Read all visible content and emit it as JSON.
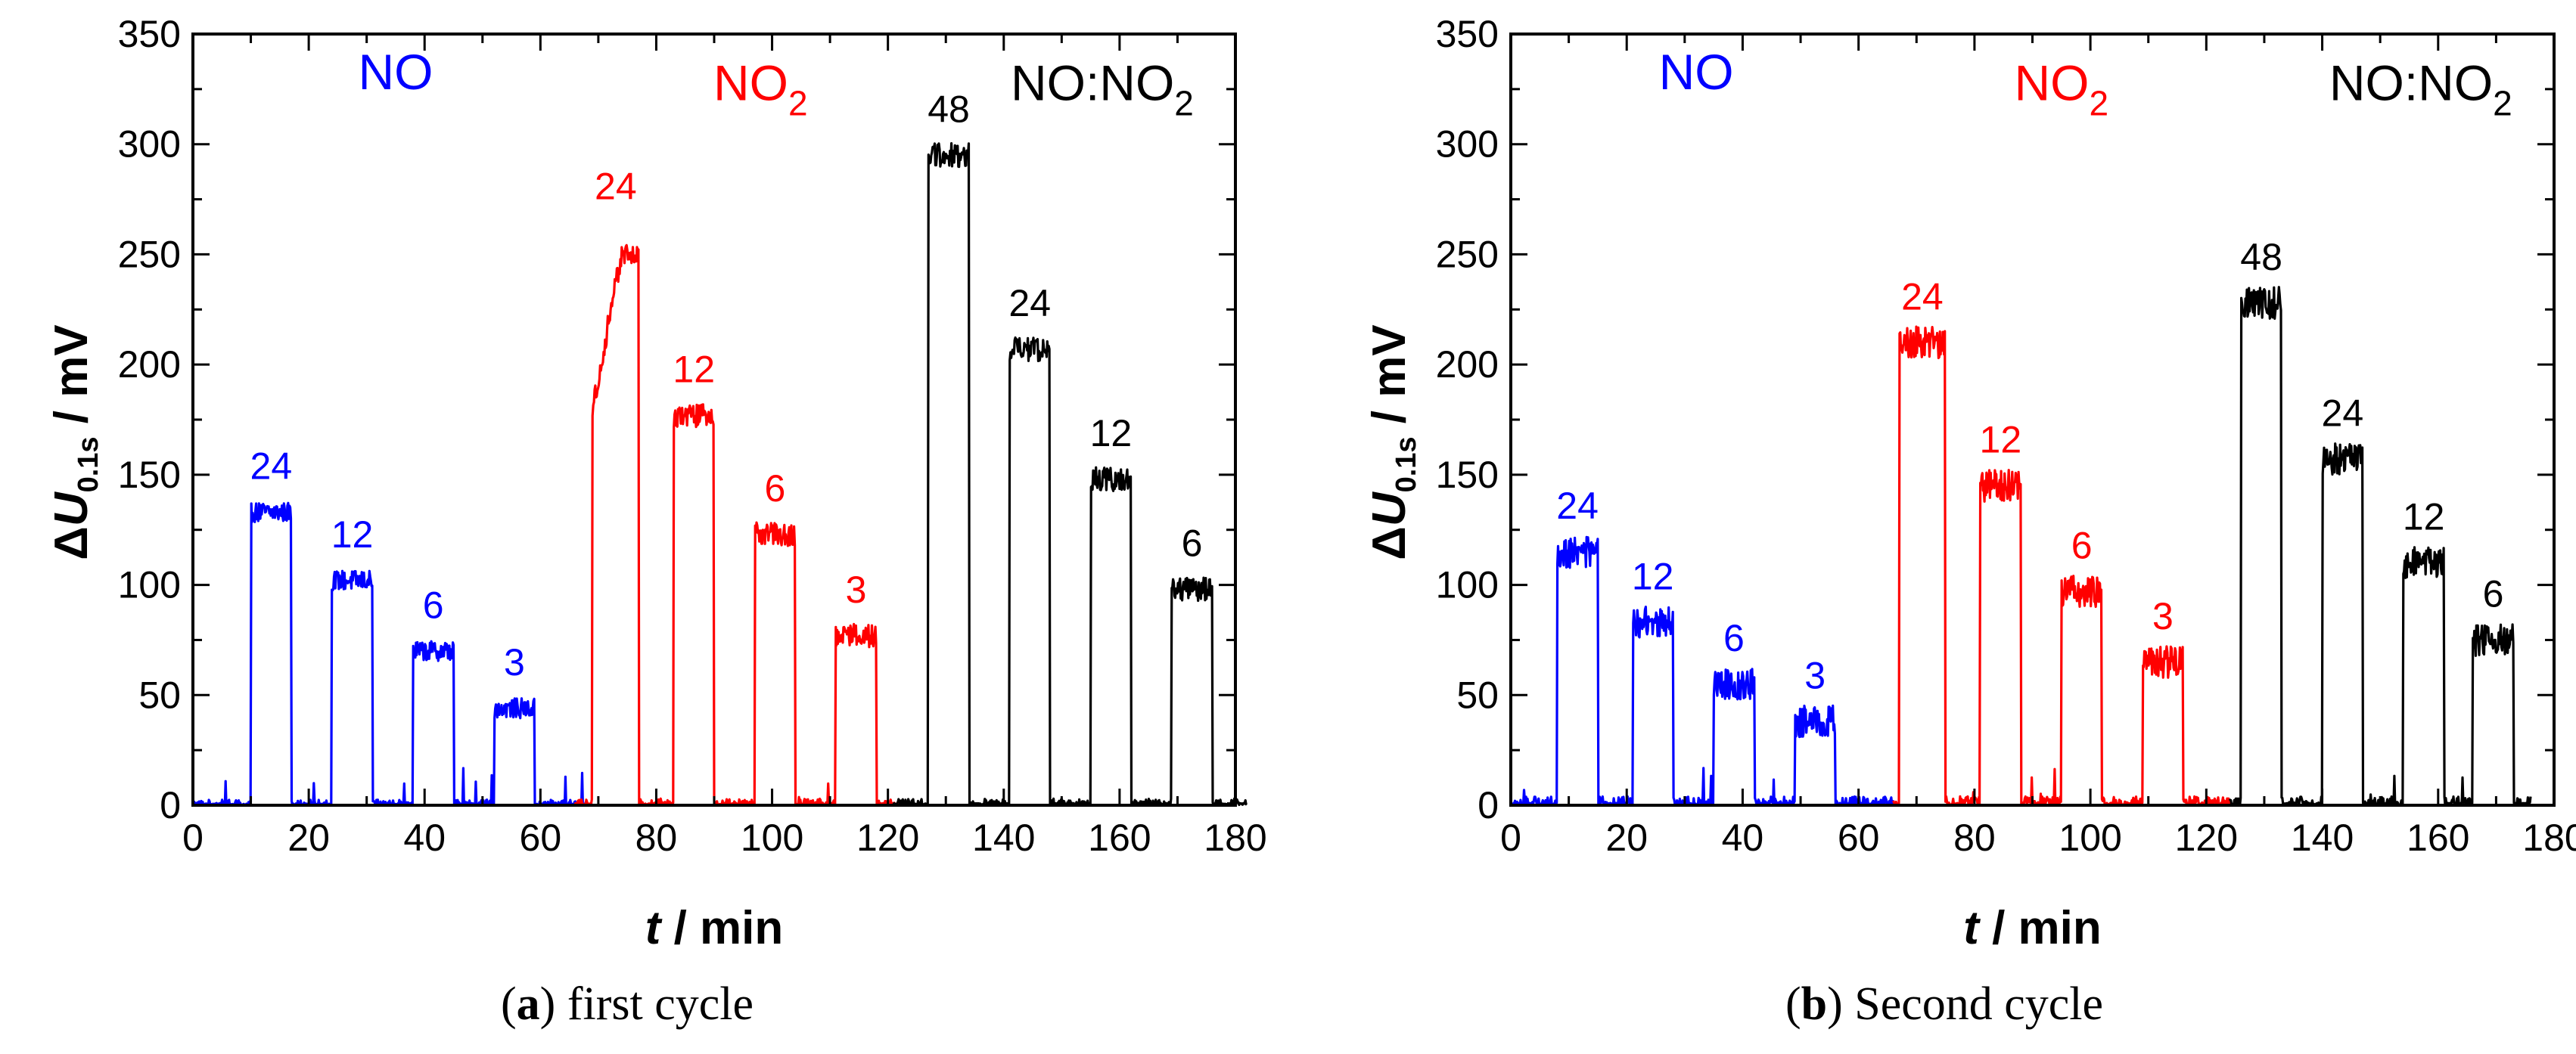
{
  "figure": {
    "captions": [
      {
        "letter": "a",
        "text": " first cycle"
      },
      {
        "letter": "b",
        "text": " Second cycle"
      }
    ]
  },
  "chart_data": [
    {
      "type": "line",
      "panel": "a",
      "xlabel_italic": "t",
      "xlabel_rest": " / min",
      "ylabel_delta": "Δ",
      "ylabel_italic": "U",
      "ylabel_sub": "0.1s",
      "ylabel_rest": " / mV",
      "xlim": [
        0,
        180
      ],
      "ylim": [
        0,
        350
      ],
      "xticks": [
        0,
        20,
        40,
        60,
        80,
        100,
        120,
        140,
        160,
        180
      ],
      "yticks": [
        0,
        50,
        100,
        150,
        200,
        250,
        300,
        350
      ],
      "grid": false,
      "group_labels": [
        {
          "parts": [
            {
              "t": "NO"
            }
          ],
          "color": "#0000ff",
          "x": 35,
          "y": 325
        },
        {
          "parts": [
            {
              "t": "NO"
            },
            {
              "t": "2",
              "sub": true
            }
          ],
          "color": "#ff0000",
          "x": 98,
          "y": 320
        },
        {
          "parts": [
            {
              "t": "NO:NO"
            },
            {
              "t": "2",
              "sub": true
            }
          ],
          "color": "#000000",
          "x": 157,
          "y": 320
        }
      ],
      "series": [
        {
          "color": "#0000ff",
          "t_start": 0,
          "t_end": 68,
          "noise": 2.5,
          "pulses": [
            {
              "start": 10,
              "end": 17,
              "value": 133,
              "label": "24"
            },
            {
              "start": 24,
              "end": 31,
              "value": 102,
              "label": "12"
            },
            {
              "start": 38,
              "end": 45,
              "value": 70,
              "label": "6"
            },
            {
              "start": 52,
              "end": 59,
              "value": 44,
              "label": "3"
            }
          ]
        },
        {
          "color": "#ff0000",
          "t_start": 66,
          "t_end": 122,
          "noise": 3,
          "pulses": [
            {
              "start": 69,
              "end": 77,
              "value": 250,
              "ramp": true,
              "label": "24"
            },
            {
              "start": 83,
              "end": 90,
              "value": 177,
              "label": "12"
            },
            {
              "start": 97,
              "end": 104,
              "value": 123,
              "label": "6"
            },
            {
              "start": 111,
              "end": 118,
              "value": 77,
              "label": "3"
            }
          ]
        },
        {
          "color": "#000000",
          "t_start": 121,
          "t_end": 182,
          "noise": 3,
          "pulses": [
            {
              "start": 127,
              "end": 134,
              "value": 295,
              "label": "48"
            },
            {
              "start": 141,
              "end": 148,
              "value": 207,
              "label": "24"
            },
            {
              "start": 155,
              "end": 162,
              "value": 148,
              "label": "12"
            },
            {
              "start": 169,
              "end": 176,
              "value": 98,
              "label": "6"
            }
          ]
        }
      ]
    },
    {
      "type": "line",
      "panel": "b",
      "xlabel_italic": "t",
      "xlabel_rest": " / min",
      "ylabel_delta": "Δ",
      "ylabel_italic": "U",
      "ylabel_sub": "0.1s",
      "ylabel_rest": " / mV",
      "xlim": [
        0,
        180
      ],
      "ylim": [
        0,
        350
      ],
      "xticks": [
        0,
        20,
        40,
        60,
        80,
        100,
        120,
        140,
        160,
        180
      ],
      "yticks": [
        0,
        50,
        100,
        150,
        200,
        250,
        300,
        350
      ],
      "grid": false,
      "group_labels": [
        {
          "parts": [
            {
              "t": "NO"
            }
          ],
          "color": "#0000ff",
          "x": 32,
          "y": 325
        },
        {
          "parts": [
            {
              "t": "NO"
            },
            {
              "t": "2",
              "sub": true
            }
          ],
          "color": "#ff0000",
          "x": 95,
          "y": 320
        },
        {
          "parts": [
            {
              "t": "NO:NO"
            },
            {
              "t": "2",
              "sub": true
            }
          ],
          "color": "#000000",
          "x": 157,
          "y": 320
        }
      ],
      "series": [
        {
          "color": "#0000ff",
          "t_start": 0,
          "t_end": 66,
          "noise": 4,
          "pulses": [
            {
              "start": 8,
              "end": 15,
              "value": 115,
              "label": "24"
            },
            {
              "start": 21,
              "end": 28,
              "value": 83,
              "label": "12"
            },
            {
              "start": 35,
              "end": 42,
              "value": 55,
              "label": "6"
            },
            {
              "start": 49,
              "end": 56,
              "value": 38,
              "label": "3"
            }
          ]
        },
        {
          "color": "#ff0000",
          "t_start": 66,
          "t_end": 124,
          "noise": 4,
          "pulses": [
            {
              "start": 67,
              "end": 75,
              "value": 210,
              "label": "24"
            },
            {
              "start": 81,
              "end": 88,
              "value": 145,
              "label": "12"
            },
            {
              "start": 95,
              "end": 102,
              "value": 97,
              "label": "6"
            },
            {
              "start": 109,
              "end": 116,
              "value": 65,
              "label": "3"
            }
          ]
        },
        {
          "color": "#000000",
          "t_start": 124,
          "t_end": 176,
          "noise": 4,
          "pulses": [
            {
              "start": 126,
              "end": 133,
              "value": 228,
              "label": "48"
            },
            {
              "start": 140,
              "end": 147,
              "value": 157,
              "label": "24"
            },
            {
              "start": 154,
              "end": 161,
              "value": 110,
              "label": "12"
            },
            {
              "start": 166,
              "end": 173,
              "value": 75,
              "label": "6"
            }
          ]
        }
      ]
    }
  ]
}
